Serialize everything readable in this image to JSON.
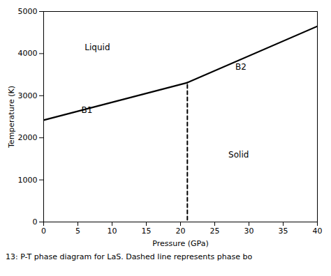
{
  "chart_data": {
    "type": "line",
    "xlabel": "Pressure (GPa)",
    "ylabel": "Temperature (K)",
    "xlim": [
      0,
      40
    ],
    "ylim": [
      0,
      5000
    ],
    "xticks": [
      0,
      5,
      10,
      15,
      20,
      25,
      30,
      35,
      40
    ],
    "yticks": [
      0,
      1000,
      2000,
      3000,
      4000,
      5000
    ],
    "grid": false,
    "color": "#000000",
    "series": [
      {
        "x": [
          0,
          21
        ],
        "values": [
          2420,
          3310
        ],
        "line_style": "solid"
      },
      {
        "x": [
          21,
          40
        ],
        "values": [
          3310,
          4650
        ],
        "line_style": "solid"
      },
      {
        "x": [
          21,
          21
        ],
        "values": [
          50,
          3310
        ],
        "line_style": "dashed"
      }
    ],
    "annotations": [
      {
        "x": 6,
        "y": 4150,
        "text": "Liquid"
      },
      {
        "x": 5.5,
        "y": 2650,
        "text": "B1"
      },
      {
        "x": 28,
        "y": 3680,
        "text": "B2"
      },
      {
        "x": 27,
        "y": 1600,
        "text": "Solid"
      }
    ],
    "caption": "13:  P-T phase diagram for LaS. Dashed line represents phase bo"
  }
}
